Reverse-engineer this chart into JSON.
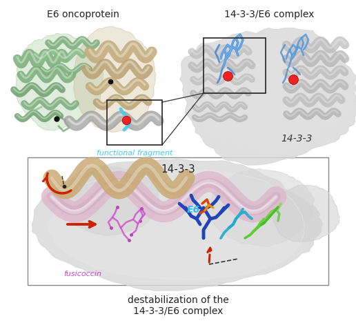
{
  "background_color": "#ffffff",
  "figsize": [
    5.16,
    4.68
  ],
  "dpi": 100,
  "top_left_label": "E6 oncoprotein",
  "top_right_label": "14-3-3/E6 complex",
  "bottom_right_label": "14-3-3",
  "functional_fragment_label": "functional fragment",
  "e6_label": "E6",
  "fusicoccin_label": "fusicoccin",
  "bottom_label_1433": "14-3-3",
  "bottom_caption_line1": "destabilization of the",
  "bottom_caption_line2": "14-3-3/E6 complex",
  "green_helix_color": "#88bb88",
  "green_helix_dark": "#6a9e6a",
  "tan_helix_color": "#c8b48a",
  "tan_helix_light": "#d4c4a0",
  "gray_helix_color": "#b0b0b0",
  "gray_surface_color": "#d0d0d0",
  "gray_surface_light": "#e8e8e8",
  "helix_pink_color": "#ddbbc8",
  "helix_tan2_color": "#c8a878",
  "cyan_color": "#44ccee",
  "blue_stick_color": "#3366cc",
  "blue_light_color": "#66aaff",
  "red_dot_color": "#ee2222",
  "black_dot_color": "#111111",
  "arrow_red": "#cc2200",
  "fusicoccin_color": "#cc44cc",
  "e6_label_color": "#33bbee",
  "label_fontsize": 9,
  "small_fontsize": 8,
  "caption_fontsize": 9
}
